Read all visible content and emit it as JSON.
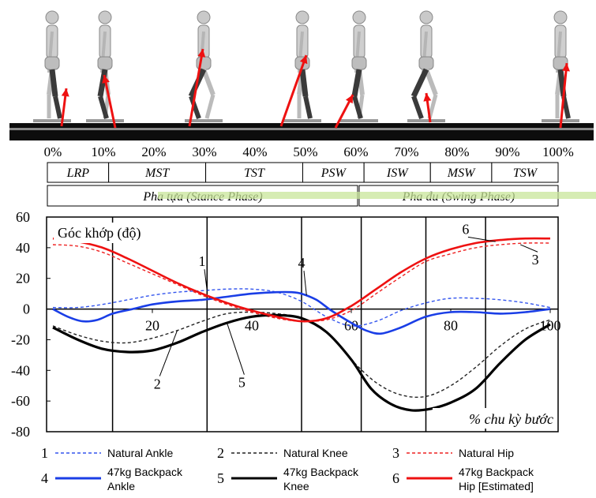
{
  "strip": {
    "percent_labels": [
      "0%",
      "10%",
      "20%",
      "30%",
      "40%",
      "50%",
      "60%",
      "70%",
      "80%",
      "90%",
      "100%"
    ],
    "phase_boxes": [
      {
        "label": "LRP",
        "start": 0,
        "end": 12
      },
      {
        "label": "MST",
        "start": 12,
        "end": 31
      },
      {
        "label": "TST",
        "start": 31,
        "end": 50
      },
      {
        "label": "PSW",
        "start": 50,
        "end": 62
      },
      {
        "label": "ISW",
        "start": 62,
        "end": 75
      },
      {
        "label": "MSW",
        "start": 75,
        "end": 87
      },
      {
        "label": "TSW",
        "start": 87,
        "end": 100
      }
    ],
    "stance_label": "Pha tựa (Stance Phase)",
    "swing_label": "Pha đu (Swing Phase)"
  },
  "chart_data": {
    "type": "line",
    "ylabel": "Góc khớp (độ)",
    "xlabel": "% chu kỳ bước",
    "xlim": [
      0,
      100
    ],
    "ylim": [
      -80,
      60
    ],
    "y_ticks": [
      60,
      40,
      20,
      0,
      -20,
      -40,
      -60,
      -80
    ],
    "x_ticks": [
      20,
      40,
      60,
      80,
      100
    ],
    "phase_lines": [
      12,
      31,
      50,
      62,
      75,
      87
    ],
    "series": [
      {
        "name": "Natural Ankle",
        "number": "1",
        "color": "#3355ee",
        "style": "dashed",
        "x": [
          0,
          5,
          10,
          15,
          20,
          25,
          30,
          35,
          40,
          45,
          50,
          55,
          60,
          65,
          70,
          75,
          80,
          85,
          90,
          95,
          100
        ],
        "y": [
          1,
          1,
          3,
          6,
          9,
          11,
          12,
          13,
          13,
          11,
          5,
          -5,
          -11,
          -8,
          -1,
          4,
          7,
          7,
          6,
          4,
          1
        ]
      },
      {
        "name": "Natural Knee",
        "number": "2",
        "color": "#222222",
        "style": "dashed",
        "x": [
          0,
          5,
          10,
          15,
          20,
          25,
          30,
          35,
          40,
          45,
          50,
          55,
          60,
          65,
          70,
          75,
          80,
          85,
          90,
          95,
          100
        ],
        "y": [
          -11,
          -17,
          -21,
          -22,
          -19,
          -14,
          -8,
          -3,
          -2,
          -3,
          -6,
          -15,
          -33,
          -48,
          -56,
          -57,
          -50,
          -38,
          -24,
          -13,
          -7
        ]
      },
      {
        "name": "Natural Hip",
        "number": "3",
        "color": "#ee2222",
        "style": "dashed",
        "x": [
          0,
          5,
          10,
          15,
          20,
          25,
          30,
          35,
          40,
          45,
          50,
          55,
          60,
          65,
          70,
          75,
          80,
          85,
          90,
          95,
          100
        ],
        "y": [
          42,
          41,
          37,
          30,
          23,
          16,
          9,
          3,
          -2,
          -6,
          -8,
          -7,
          -1,
          10,
          21,
          31,
          36,
          40,
          42,
          43,
          43
        ]
      },
      {
        "name": "47kg Backpack Ankle",
        "number": "4",
        "color": "#1a3ee6",
        "style": "solid",
        "x": [
          0,
          3,
          6,
          9,
          12,
          16,
          20,
          25,
          30,
          35,
          40,
          45,
          48,
          50,
          53,
          56,
          60,
          63,
          66,
          70,
          75,
          80,
          85,
          90,
          95,
          100
        ],
        "y": [
          0,
          -5,
          -8,
          -7,
          -3,
          0,
          3,
          5,
          6,
          8,
          10,
          11,
          11,
          10,
          6,
          -1,
          -9,
          -14,
          -16,
          -12,
          -5,
          -2,
          -2,
          -3,
          -2,
          0
        ]
      },
      {
        "name": "47kg Backpack Knee",
        "number": "5",
        "color": "#000000",
        "style": "solid",
        "x": [
          0,
          5,
          10,
          15,
          20,
          25,
          30,
          35,
          40,
          45,
          50,
          55,
          60,
          64,
          68,
          72,
          76,
          80,
          85,
          90,
          95,
          100
        ],
        "y": [
          -12,
          -20,
          -26,
          -28,
          -27,
          -22,
          -15,
          -9,
          -5,
          -4,
          -6,
          -15,
          -33,
          -52,
          -62,
          -66,
          -65,
          -61,
          -52,
          -35,
          -20,
          -10
        ]
      },
      {
        "name": "47kg Backpack Hip [Estimated]",
        "number": "6",
        "color": "#ee1111",
        "style": "solid",
        "x": [
          0,
          5,
          10,
          15,
          20,
          25,
          30,
          35,
          40,
          45,
          50,
          55,
          60,
          65,
          70,
          75,
          80,
          85,
          90,
          95,
          100
        ],
        "y": [
          46,
          44,
          40,
          33,
          25,
          17,
          10,
          4,
          -1,
          -5,
          -8,
          -6,
          2,
          13,
          24,
          33,
          39,
          43,
          45,
          46,
          46
        ]
      }
    ],
    "callouts": [
      {
        "number": "1",
        "text_x": 30,
        "text_y": 28,
        "to_x": 31,
        "to_y": 12
      },
      {
        "number": "2",
        "text_x": 21,
        "text_y": -52,
        "to_x": 25,
        "to_y": -14
      },
      {
        "number": "3",
        "text_x": 97,
        "text_y": 29,
        "to_x": 94,
        "to_y": 42
      },
      {
        "number": "4",
        "text_x": 50,
        "text_y": 27,
        "to_x": 51,
        "to_y": 9
      },
      {
        "number": "5",
        "text_x": 38,
        "text_y": -51,
        "to_x": 35,
        "to_y": -9
      },
      {
        "number": "6",
        "text_x": 83,
        "text_y": 49,
        "to_x": 89,
        "to_y": 44
      }
    ]
  }
}
